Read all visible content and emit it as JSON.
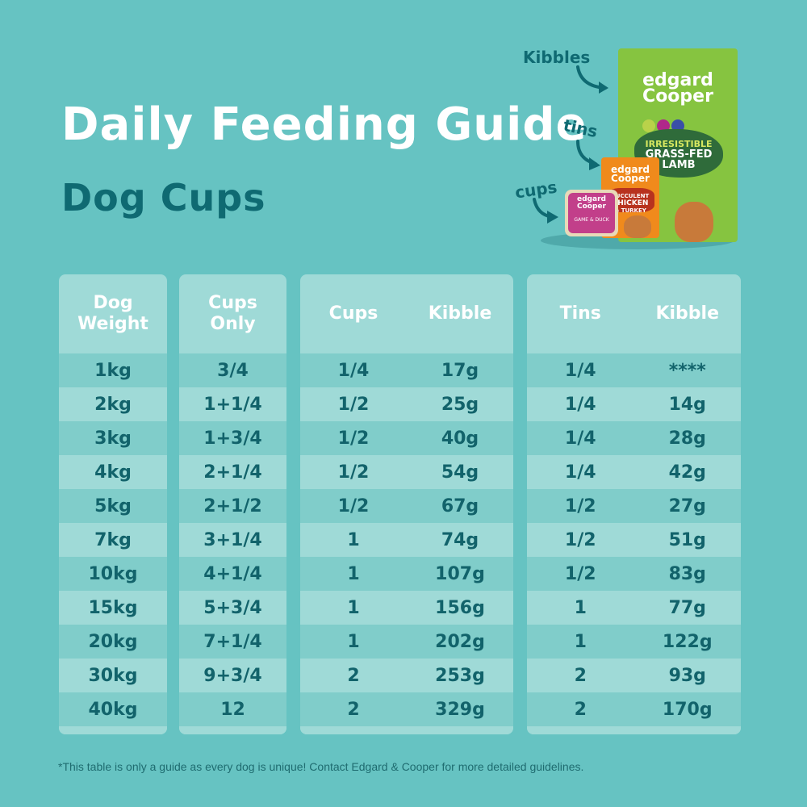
{
  "header": {
    "title": "Daily Feeding Guide",
    "subtitle": "Dog Cups"
  },
  "illustration": {
    "labels": {
      "kibbles": "Kibbles",
      "tins": "tins",
      "cups": "cups"
    },
    "bag": {
      "brand_line1": "edgard",
      "brand_line2": "Cooper",
      "flavour_line1": "IRRESISTIBLE",
      "flavour_line2": "GRASS-FED",
      "flavour_line3": "LAMB",
      "color": "#86c440"
    },
    "tin": {
      "brand_line1": "edgard",
      "brand_line2": "Cooper",
      "flavour_line1": "SUCCULENT",
      "flavour_line2": "CHICKEN",
      "flavour_line3": "& TURKEY",
      "color": "#f08a1c"
    },
    "cup": {
      "brand_line1": "edgard",
      "brand_line2": "Cooper",
      "flavour": "GAME & DUCK",
      "color": "#c23f8a"
    }
  },
  "tables": {
    "weight": {
      "headers": [
        "Dog\nWeight"
      ],
      "header_line1": "Dog",
      "header_line2": "Weight",
      "rows": [
        "1kg",
        "2kg",
        "3kg",
        "4kg",
        "5kg",
        "7kg",
        "10kg",
        "15kg",
        "20kg",
        "30kg",
        "40kg"
      ]
    },
    "cups_only": {
      "header_line1": "Cups",
      "header_line2": "Only",
      "rows": [
        "3/4",
        "1+1/4",
        "1+3/4",
        "2+1/4",
        "2+1/2",
        "3+1/4",
        "4+1/4",
        "5+3/4",
        "7+1/4",
        "9+3/4",
        "12"
      ]
    },
    "cups_kibble": {
      "headers": [
        "Cups",
        "Kibble"
      ],
      "rows": [
        [
          "1/4",
          "17g"
        ],
        [
          "1/2",
          "25g"
        ],
        [
          "1/2",
          "40g"
        ],
        [
          "1/2",
          "54g"
        ],
        [
          "1/2",
          "67g"
        ],
        [
          "1",
          "74g"
        ],
        [
          "1",
          "107g"
        ],
        [
          "1",
          "156g"
        ],
        [
          "1",
          "202g"
        ],
        [
          "2",
          "253g"
        ],
        [
          "2",
          "329g"
        ]
      ]
    },
    "tins_kibble": {
      "headers": [
        "Tins",
        "Kibble"
      ],
      "rows": [
        [
          "1/4",
          "****"
        ],
        [
          "1/4",
          "14g"
        ],
        [
          "1/4",
          "28g"
        ],
        [
          "1/4",
          "42g"
        ],
        [
          "1/2",
          "27g"
        ],
        [
          "1/2",
          "51g"
        ],
        [
          "1/2",
          "83g"
        ],
        [
          "1",
          "77g"
        ],
        [
          "1",
          "122g"
        ],
        [
          "2",
          "93g"
        ],
        [
          "2",
          "170g"
        ]
      ]
    }
  },
  "footnote": "*This table is only a guide as every dog is unique! Contact Edgard & Cooper for more detailed guidelines.",
  "colors": {
    "background": "#66c3c2",
    "title": "#ffffff",
    "subtitle": "#0f6a72",
    "panel_light": "#9fdad7",
    "panel_dark": "#80cdca",
    "cell_text": "#12636b"
  }
}
